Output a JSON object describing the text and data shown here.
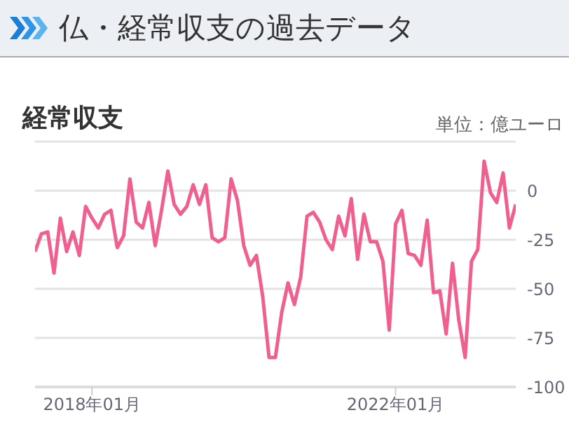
{
  "chart_data": {
    "type": "line",
    "title": "仏・経常収支の過去データ",
    "subtitle": "経常収支",
    "annotations": [
      "単位：億ユーロ"
    ],
    "x": [
      "2017-04",
      "2017-05",
      "2017-06",
      "2017-07",
      "2017-08",
      "2017-09",
      "2017-10",
      "2017-11",
      "2017-12",
      "2018-01",
      "2018-02",
      "2018-03",
      "2018-04",
      "2018-05",
      "2018-06",
      "2018-07",
      "2018-08",
      "2018-09",
      "2018-10",
      "2018-11",
      "2018-12",
      "2019-01",
      "2019-02",
      "2019-03",
      "2019-04",
      "2019-05",
      "2019-06",
      "2019-07",
      "2019-08",
      "2019-09",
      "2019-10",
      "2019-11",
      "2019-12",
      "2020-01",
      "2020-02",
      "2020-03",
      "2020-04",
      "2020-05",
      "2020-06",
      "2020-07",
      "2020-08",
      "2020-09",
      "2020-10",
      "2020-11",
      "2020-12",
      "2021-01",
      "2021-02",
      "2021-03",
      "2021-04",
      "2021-05",
      "2021-06",
      "2021-07",
      "2021-08",
      "2021-09",
      "2021-10",
      "2021-11",
      "2021-12",
      "2022-01",
      "2022-02",
      "2022-03",
      "2022-04",
      "2022-05",
      "2022-06",
      "2022-07",
      "2022-08",
      "2022-09",
      "2022-10",
      "2022-11",
      "2022-12",
      "2023-01",
      "2023-02",
      "2023-03",
      "2023-04",
      "2023-05",
      "2023-06",
      "2023-07",
      "2023-08"
    ],
    "series": [
      {
        "color": "#ef5f90",
        "values": [
          -31,
          -22,
          -21,
          -42,
          -14,
          -31,
          -21,
          -33,
          -8,
          -14,
          -19,
          -12,
          -10,
          -29,
          -23,
          6,
          -16,
          -19,
          -6,
          -28,
          -10,
          10,
          -7,
          -12,
          -8,
          3,
          -7,
          3,
          -24,
          -26,
          -24,
          6,
          -5,
          -28,
          -38,
          -33,
          -54,
          -85,
          -85,
          -62,
          -47,
          -58,
          -44,
          -13,
          -11,
          -16,
          -25,
          -30,
          -13,
          -23,
          -4,
          -35,
          -12,
          -26,
          -26,
          -36,
          -71,
          -17,
          -10,
          -32,
          -33,
          -38,
          -15,
          -52,
          -51,
          -73,
          -37,
          -66,
          -85,
          -36,
          -30,
          15,
          -1,
          -6,
          9,
          -19,
          -7
        ]
      }
    ],
    "xlim": [
      "2017-04",
      "2023-08"
    ],
    "xticks": [
      {
        "value": "2018-01",
        "label": "2018年01月"
      },
      {
        "value": "2022-01",
        "label": "2022年01月"
      }
    ],
    "ylim": [
      -100,
      25
    ],
    "yticks": [
      {
        "value": 25,
        "label": null
      },
      0,
      -25,
      -50,
      -75,
      -100
    ],
    "grid": true,
    "marker": "none",
    "line_style": "solid"
  }
}
